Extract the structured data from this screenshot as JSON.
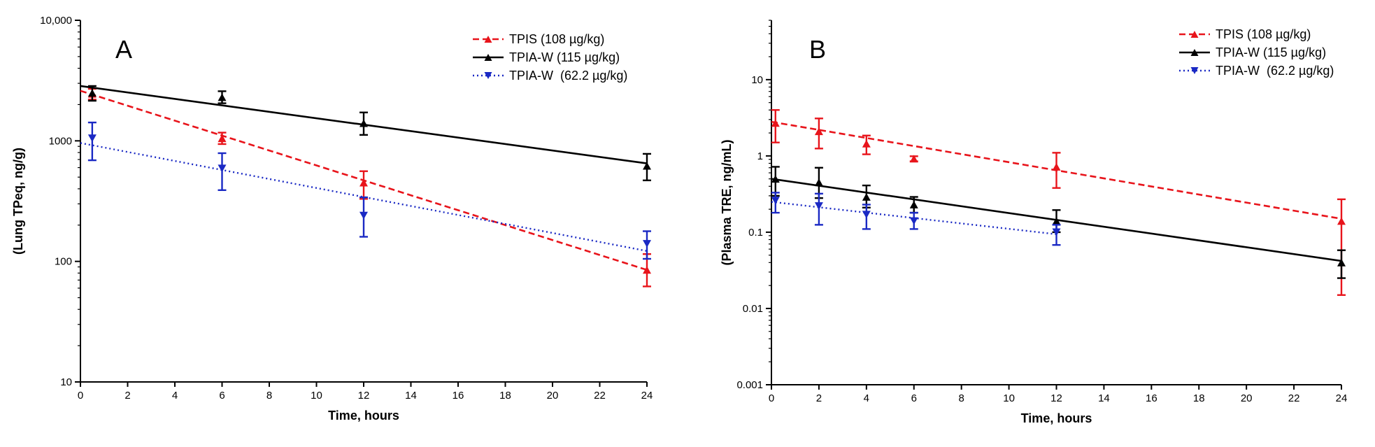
{
  "chart_data": [
    {
      "type": "scatter",
      "panel_label": "A",
      "xlabel": "Time, hours",
      "ylabel": "(Lung TPeq, ng/g)",
      "xlim": [
        0,
        24
      ],
      "ylim": [
        10,
        10000
      ],
      "yscale": "log",
      "xticks": [
        0,
        2,
        4,
        6,
        8,
        10,
        12,
        14,
        16,
        18,
        20,
        22,
        24
      ],
      "xtick_labels": [
        "0",
        "2",
        "4",
        "6",
        "8",
        "10",
        "12",
        "14",
        "16",
        "18",
        "20",
        "22",
        "24"
      ],
      "yticks": [
        10,
        100,
        1000,
        10000
      ],
      "ytick_labels": [
        "10",
        "100",
        "1000",
        "10,000"
      ],
      "grid": false,
      "legend_position": "top-right",
      "series": [
        {
          "name": "TPIS (108 µg/kg)",
          "color": "#e8141b",
          "line_style": "dashed",
          "marker": "triangle-up",
          "x": [
            0.5,
            6,
            12,
            24
          ],
          "y": [
            2450,
            1050,
            450,
            85
          ],
          "err_low": [
            2200,
            940,
            330,
            62
          ],
          "err_high": [
            2700,
            1170,
            560,
            115
          ],
          "fit": {
            "x": [
              0,
              24
            ],
            "y": [
              2600,
              85
            ]
          }
        },
        {
          "name": "TPIA-W (115 µg/kg)",
          "color": "#000000",
          "line_style": "solid",
          "marker": "triangle-up",
          "x": [
            0.5,
            6,
            12,
            24
          ],
          "y": [
            2500,
            2300,
            1400,
            620
          ],
          "err_low": [
            2150,
            2050,
            1120,
            470
          ],
          "err_high": [
            2850,
            2580,
            1720,
            780
          ],
          "fit": {
            "x": [
              0,
              24
            ],
            "y": [
              2850,
              650
            ]
          }
        },
        {
          "name": "TPIA-W  (62.2 µg/kg)",
          "color": "#1a29c4",
          "line_style": "dotted",
          "marker": "triangle-down",
          "x": [
            0.5,
            6,
            12,
            24
          ],
          "y": [
            1050,
            590,
            240,
            140
          ],
          "err_low": [
            690,
            390,
            160,
            105
          ],
          "err_high": [
            1420,
            790,
            340,
            178
          ],
          "fit": {
            "x": [
              0,
              24
            ],
            "y": [
              960,
              122
            ]
          }
        }
      ]
    },
    {
      "type": "scatter",
      "panel_label": "B",
      "xlabel": "Time, hours",
      "ylabel": "(Plasma TRE, ng/mL)",
      "xlim": [
        0,
        24
      ],
      "ylim": [
        0.001,
        60
      ],
      "yscale": "log",
      "xticks": [
        0,
        2,
        4,
        6,
        8,
        10,
        12,
        14,
        16,
        18,
        20,
        22,
        24
      ],
      "xtick_labels": [
        "0",
        "2",
        "4",
        "6",
        "8",
        "10",
        "12",
        "14",
        "16",
        "18",
        "20",
        "22",
        "24"
      ],
      "yticks": [
        0.001,
        0.01,
        0.1,
        1,
        10
      ],
      "ytick_labels": [
        "0.001",
        "0.01",
        "0.1",
        "1",
        "10"
      ],
      "grid": false,
      "legend_position": "top-right",
      "series": [
        {
          "name": "TPIS (108 µg/kg)",
          "color": "#e8141b",
          "line_style": "dashed",
          "marker": "triangle-up",
          "x": [
            0.17,
            2,
            4,
            6,
            12,
            24
          ],
          "y": [
            2.7,
            2.1,
            1.45,
            0.92,
            0.72,
            0.14
          ],
          "err_low": [
            1.5,
            1.25,
            1.05,
            0.85,
            0.38,
            0.015
          ],
          "err_high": [
            4.0,
            3.1,
            1.85,
            0.99,
            1.1,
            0.27
          ],
          "fit": {
            "x": [
              0,
              24
            ],
            "y": [
              2.8,
              0.15
            ]
          }
        },
        {
          "name": "TPIA-W (115 µg/kg)",
          "color": "#000000",
          "line_style": "solid",
          "marker": "triangle-up",
          "x": [
            0.17,
            2,
            4,
            6,
            12,
            24
          ],
          "y": [
            0.5,
            0.45,
            0.29,
            0.23,
            0.14,
            0.04
          ],
          "err_low": [
            0.3,
            0.28,
            0.21,
            0.18,
            0.1,
            0.025
          ],
          "err_high": [
            0.72,
            0.7,
            0.41,
            0.29,
            0.195,
            0.058
          ],
          "fit": {
            "x": [
              0,
              24
            ],
            "y": [
              0.5,
              0.042
            ]
          }
        },
        {
          "name": "TPIA-W  (62.2 µg/kg)",
          "color": "#1a29c4",
          "line_style": "dotted",
          "marker": "triangle-down",
          "x": [
            0.17,
            2,
            4,
            6,
            12
          ],
          "y": [
            0.26,
            0.22,
            0.17,
            0.14,
            0.1
          ],
          "err_low": [
            0.18,
            0.125,
            0.11,
            0.11,
            0.068
          ],
          "err_high": [
            0.33,
            0.32,
            0.23,
            0.18,
            0.125
          ],
          "fit": {
            "x": [
              0,
              12
            ],
            "y": [
              0.25,
              0.094
            ]
          }
        }
      ]
    }
  ]
}
